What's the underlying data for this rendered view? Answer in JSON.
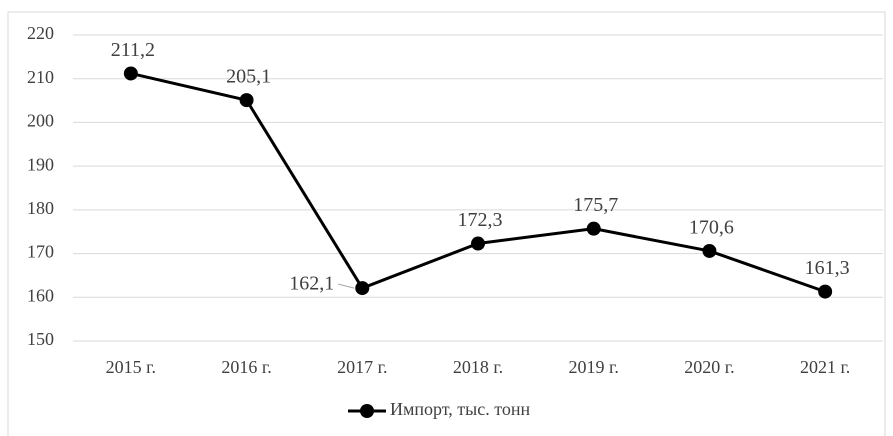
{
  "chart_data": {
    "type": "line",
    "categories": [
      "2015 г.",
      "2016 г.",
      "2017 г.",
      "2018 г.",
      "2019 г.",
      "2020 г.",
      "2021 г."
    ],
    "series": [
      {
        "name": "Импорт, тыс. тонн",
        "color": "#000000",
        "values": [
          211.2,
          205.1,
          162.1,
          172.3,
          175.7,
          170.6,
          161.3
        ],
        "value_labels": [
          "211,2",
          "205,1",
          "162,1",
          "172,3",
          "175,7",
          "170,6",
          "161,3"
        ]
      }
    ],
    "ylim": [
      150,
      220
    ],
    "yticks": [
      150,
      160,
      170,
      180,
      190,
      200,
      210,
      220
    ],
    "grid": true,
    "legend": "bottom"
  }
}
